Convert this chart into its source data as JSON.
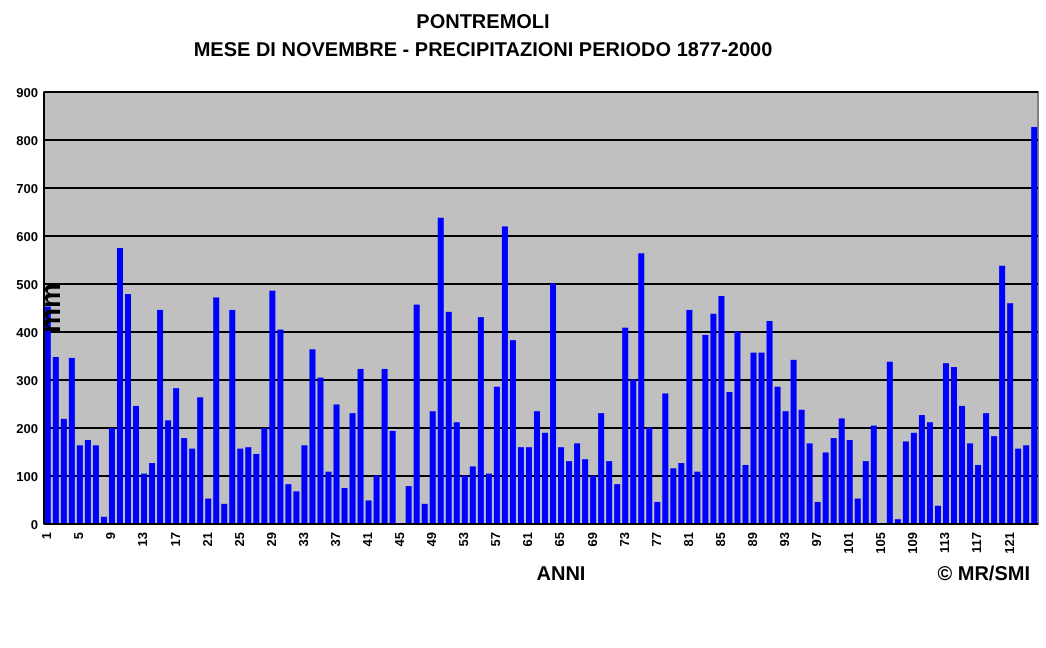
{
  "chart_data": {
    "type": "bar",
    "title": "PONTREMOLI",
    "subtitle": "MESE DI NOVEMBRE - PRECIPITAZIONI PERIODO 1877-2000",
    "xlabel": "ANNI",
    "ylabel": "mm",
    "annotations": [
      "© MR/SMI"
    ],
    "categories": [
      "1",
      null,
      null,
      null,
      "5",
      null,
      null,
      null,
      "9",
      null,
      null,
      null,
      "13",
      null,
      null,
      null,
      "17",
      null,
      null,
      null,
      "21",
      null,
      null,
      null,
      "25",
      null,
      null,
      null,
      "29",
      null,
      null,
      null,
      "33",
      null,
      null,
      null,
      "37",
      null,
      null,
      null,
      "41",
      null,
      null,
      null,
      "45",
      null,
      null,
      null,
      "49",
      null,
      null,
      null,
      "53",
      null,
      null,
      null,
      "57",
      null,
      null,
      null,
      "61",
      null,
      null,
      null,
      "65",
      null,
      null,
      null,
      "69",
      null,
      null,
      null,
      "73",
      null,
      null,
      null,
      "77",
      null,
      null,
      null,
      "81",
      null,
      null,
      null,
      "85",
      null,
      null,
      null,
      "89",
      null,
      null,
      null,
      "93",
      null,
      null,
      null,
      "97",
      null,
      null,
      null,
      "101",
      null,
      null,
      null,
      "105",
      null,
      null,
      null,
      "109",
      null,
      null,
      null,
      "113",
      null,
      null,
      null,
      "117",
      null,
      null,
      null,
      "121",
      null,
      null,
      null
    ],
    "values": [
      453,
      348,
      219,
      346,
      164,
      175,
      164,
      15,
      200,
      575,
      479,
      246,
      105,
      127,
      446,
      216,
      283,
      179,
      157,
      264,
      53,
      472,
      42,
      446,
      157,
      160,
      146,
      200,
      486,
      405,
      83,
      68,
      164,
      364,
      305,
      109,
      249,
      75,
      231,
      323,
      49,
      101,
      323,
      194,
      null,
      79,
      457,
      42,
      235,
      638,
      442,
      212,
      101,
      120,
      431,
      105,
      286,
      620,
      383,
      160,
      160,
      235,
      190,
      501,
      160,
      131,
      168,
      135,
      101,
      231,
      131,
      83,
      409,
      301,
      564,
      201,
      46,
      272,
      116,
      127,
      446,
      109,
      394,
      438,
      475,
      275,
      401,
      123,
      357,
      357,
      423,
      286,
      235,
      342,
      238,
      168,
      46,
      149,
      179,
      220,
      175,
      53,
      131,
      205,
      null,
      338,
      10,
      172,
      190,
      227,
      212,
      38,
      335,
      327,
      246,
      168,
      123,
      231,
      183,
      538,
      460,
      157,
      164,
      827
    ],
    "color": "#0000ff",
    "ylim": [
      0,
      900
    ],
    "yticks": [
      0,
      100,
      200,
      300,
      400,
      500,
      600,
      700,
      800,
      900
    ],
    "grid": "y"
  }
}
